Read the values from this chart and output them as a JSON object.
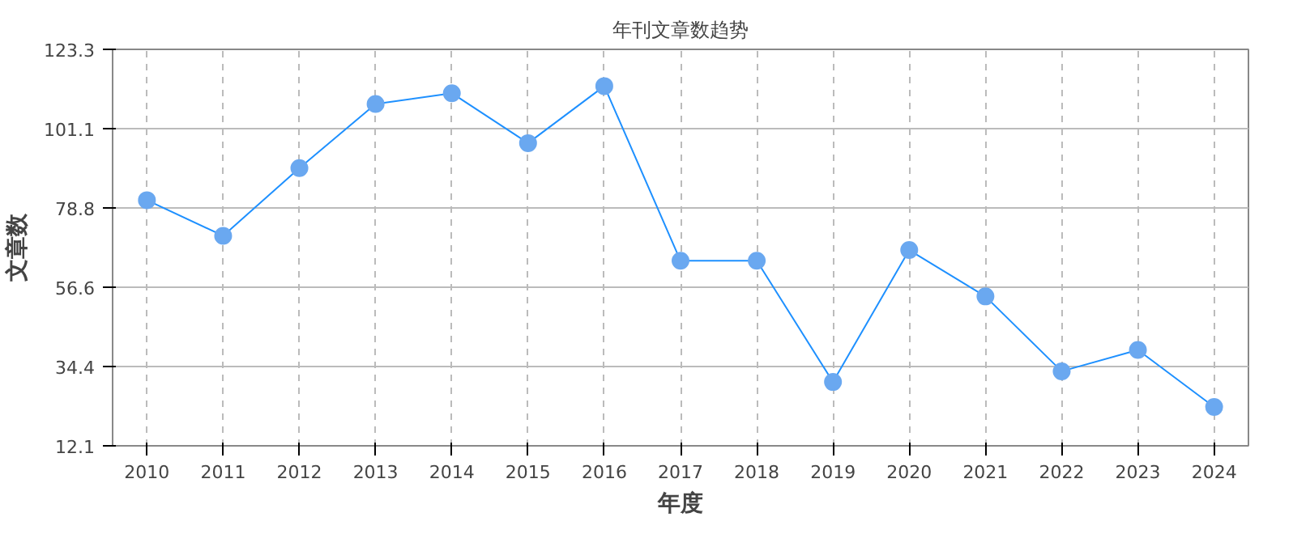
{
  "chart_data": {
    "type": "line",
    "title": "年刊文章数趋势",
    "xlabel": "年度",
    "ylabel": "文章数",
    "categories": [
      "2010",
      "2011",
      "2012",
      "2013",
      "2014",
      "2015",
      "2016",
      "2017",
      "2018",
      "2019",
      "2020",
      "2021",
      "2022",
      "2023",
      "2024"
    ],
    "series": [
      {
        "color": "#1e90ff",
        "values": [
          81,
          71,
          90,
          108,
          111,
          97,
          113,
          64,
          64,
          30,
          67,
          54,
          33,
          39,
          23
        ]
      }
    ],
    "ylim": [
      12.1,
      123.3
    ],
    "yticks": [
      12.1,
      34.4,
      56.6,
      78.8,
      101.1,
      123.3
    ],
    "grid": true,
    "marker": "circle",
    "line_style": "solid"
  }
}
